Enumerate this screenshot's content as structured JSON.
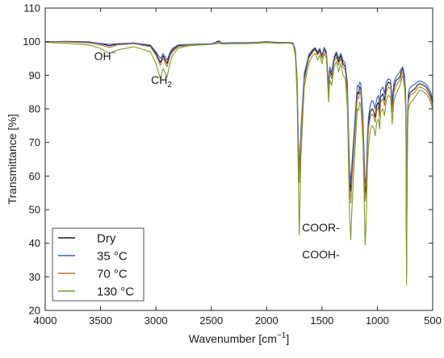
{
  "chart_data": {
    "type": "line",
    "title": "",
    "xlabel": "Wavenumber [cm",
    "xlabel_sup": "−1",
    "xlabel_end": "]",
    "ylabel": "Transmittance [%]",
    "xlim": [
      4000,
      500
    ],
    "x_reversed": true,
    "ylim": [
      20,
      110
    ],
    "x_ticks": [
      4000,
      3500,
      3000,
      2500,
      2000,
      1500,
      1000,
      500
    ],
    "y_ticks": [
      20,
      30,
      40,
      50,
      60,
      70,
      80,
      90,
      100,
      110
    ],
    "grid": false,
    "legend_position": "bottom-left",
    "annotations": [
      {
        "id": "oh",
        "text": "OH",
        "sup": "−",
        "x": 3460,
        "y": 94.5
      },
      {
        "id": "ch2",
        "text": "CH",
        "sub": "2",
        "x": 2950,
        "y": 87.5
      },
      {
        "id": "coor",
        "text": "COOR-",
        "x": 1510,
        "y": 43.5
      },
      {
        "id": "cooh",
        "text": "COOH-",
        "x": 1510,
        "y": 35.5
      }
    ],
    "series": [
      {
        "name": "Dry",
        "color": "#1a1a1a",
        "x": [
          4000,
          3800,
          3600,
          3500,
          3420,
          3350,
          3200,
          3050,
          3000,
          2960,
          2935,
          2900,
          2870,
          2850,
          2800,
          2700,
          2600,
          2500,
          2430,
          2400,
          2300,
          2200,
          2100,
          2000,
          1900,
          1800,
          1760,
          1740,
          1725,
          1715,
          1705,
          1690,
          1660,
          1620,
          1600,
          1580,
          1560,
          1540,
          1520,
          1500,
          1480,
          1460,
          1440,
          1430,
          1412,
          1390,
          1370,
          1350,
          1330,
          1310,
          1290,
          1270,
          1260,
          1250,
          1240,
          1230,
          1210,
          1190,
          1180,
          1170,
          1160,
          1150,
          1140,
          1130,
          1120,
          1110,
          1100,
          1090,
          1080,
          1065,
          1050,
          1035,
          1020,
          1005,
          990,
          980,
          970,
          960,
          950,
          935,
          920,
          900,
          880,
          866,
          850,
          830,
          810,
          795,
          785,
          770,
          755,
          745,
          740,
          736,
          732,
          726,
          720,
          710,
          700,
          680,
          660,
          640,
          620,
          600,
          580,
          560,
          540,
          520,
          500
        ],
        "y": [
          100.0,
          100.1,
          99.9,
          99.4,
          98.8,
          99.3,
          99.6,
          98.8,
          96.5,
          93.8,
          95.8,
          93.5,
          96.5,
          97.5,
          98.8,
          99.1,
          99.2,
          99.3,
          100.2,
          99.5,
          99.6,
          99.6,
          99.7,
          100.0,
          99.7,
          99.8,
          99.5,
          97.0,
          88.0,
          70.0,
          60.5,
          72.5,
          89.5,
          95.5,
          96.5,
          97.5,
          97.9,
          96.5,
          97.5,
          95.5,
          98.0,
          96.5,
          85.5,
          91.5,
          90.0,
          95.0,
          96.5,
          94.0,
          96.0,
          93.5,
          92.5,
          85.5,
          70.0,
          59.0,
          55.5,
          61.5,
          70.5,
          81.0,
          85.0,
          84.5,
          86.5,
          86.0,
          81.5,
          76.0,
          64.5,
          55.0,
          57.5,
          70.0,
          75.5,
          79.0,
          80.0,
          79.5,
          77.5,
          81.0,
          82.0,
          79.0,
          83.5,
          84.0,
          84.5,
          82.5,
          86.5,
          88.0,
          87.5,
          80.5,
          86.5,
          88.5,
          89.0,
          89.5,
          91.0,
          92.0,
          89.0,
          84.0,
          72.0,
          31.5,
          60.0,
          78.0,
          83.0,
          84.5,
          85.0,
          85.5,
          86.0,
          87.0,
          87.5,
          87.3,
          87.0,
          86.5,
          85.5,
          84.0,
          82.0
        ]
      },
      {
        "name": "35 °C",
        "color": "#3b5bbf",
        "x": [
          4000,
          3800,
          3600,
          3500,
          3420,
          3350,
          3200,
          3050,
          3000,
          2960,
          2935,
          2900,
          2870,
          2850,
          2800,
          2700,
          2600,
          2500,
          2430,
          2400,
          2300,
          2200,
          2100,
          2000,
          1900,
          1800,
          1760,
          1740,
          1725,
          1715,
          1705,
          1690,
          1660,
          1620,
          1600,
          1580,
          1560,
          1540,
          1520,
          1500,
          1480,
          1460,
          1440,
          1430,
          1412,
          1390,
          1370,
          1350,
          1330,
          1310,
          1290,
          1270,
          1260,
          1250,
          1240,
          1230,
          1210,
          1190,
          1180,
          1170,
          1160,
          1150,
          1140,
          1130,
          1120,
          1110,
          1100,
          1090,
          1080,
          1065,
          1050,
          1035,
          1020,
          1005,
          990,
          980,
          970,
          960,
          950,
          935,
          920,
          900,
          880,
          866,
          850,
          830,
          810,
          795,
          785,
          770,
          755,
          745,
          740,
          736,
          732,
          726,
          720,
          710,
          700,
          680,
          660,
          640,
          620,
          600,
          580,
          560,
          540,
          520,
          500
        ],
        "y": [
          100.0,
          100.0,
          99.8,
          99.5,
          99.2,
          99.4,
          99.6,
          99.0,
          97.0,
          95.0,
          96.5,
          94.5,
          97.0,
          98.0,
          99.0,
          99.2,
          99.3,
          99.4,
          100.0,
          99.6,
          99.7,
          99.7,
          99.8,
          100.0,
          99.8,
          99.8,
          99.6,
          97.5,
          89.0,
          72.0,
          62.0,
          74.0,
          90.5,
          96.0,
          97.0,
          97.8,
          98.2,
          97.0,
          98.0,
          96.0,
          98.3,
          97.0,
          87.0,
          92.5,
          91.0,
          95.5,
          97.0,
          95.0,
          96.5,
          94.5,
          93.5,
          87.5,
          73.0,
          62.0,
          58.0,
          63.5,
          73.0,
          83.0,
          87.0,
          86.5,
          88.0,
          87.5,
          83.0,
          78.0,
          67.0,
          57.5,
          60.0,
          72.0,
          77.5,
          81.0,
          82.5,
          82.0,
          80.0,
          83.0,
          84.0,
          81.0,
          85.5,
          86.0,
          86.5,
          84.5,
          88.0,
          89.0,
          88.5,
          82.5,
          88.0,
          89.5,
          90.5,
          91.0,
          92.0,
          92.5,
          90.0,
          85.5,
          74.0,
          33.0,
          62.0,
          79.5,
          84.5,
          86.0,
          86.5,
          87.0,
          87.3,
          88.0,
          88.3,
          88.1,
          87.8,
          87.3,
          86.5,
          85.0,
          83.0
        ]
      },
      {
        "name": "70 °C",
        "color": "#b5733a",
        "x": [
          4000,
          3800,
          3600,
          3500,
          3420,
          3350,
          3200,
          3050,
          3000,
          2960,
          2935,
          2900,
          2870,
          2850,
          2800,
          2700,
          2600,
          2500,
          2430,
          2400,
          2300,
          2200,
          2100,
          2000,
          1900,
          1800,
          1760,
          1740,
          1725,
          1715,
          1705,
          1690,
          1660,
          1620,
          1600,
          1580,
          1560,
          1540,
          1520,
          1500,
          1480,
          1460,
          1440,
          1430,
          1412,
          1390,
          1370,
          1350,
          1330,
          1310,
          1290,
          1270,
          1260,
          1250,
          1240,
          1230,
          1210,
          1190,
          1180,
          1170,
          1160,
          1150,
          1140,
          1130,
          1120,
          1110,
          1100,
          1090,
          1080,
          1065,
          1050,
          1035,
          1020,
          1005,
          990,
          980,
          970,
          960,
          950,
          935,
          920,
          900,
          880,
          866,
          850,
          830,
          810,
          795,
          785,
          770,
          755,
          745,
          740,
          736,
          732,
          726,
          720,
          710,
          700,
          680,
          660,
          640,
          620,
          600,
          580,
          560,
          540,
          520,
          500
        ],
        "y": [
          100.0,
          99.9,
          99.6,
          99.0,
          98.3,
          99.0,
          99.4,
          98.5,
          96.0,
          93.0,
          95.0,
          92.5,
          96.0,
          97.0,
          98.5,
          99.0,
          99.1,
          99.2,
          99.9,
          99.4,
          99.5,
          99.5,
          99.6,
          99.9,
          99.6,
          99.7,
          99.4,
          96.5,
          87.0,
          68.0,
          58.0,
          71.0,
          88.5,
          95.0,
          96.0,
          97.0,
          97.5,
          96.0,
          97.0,
          95.0,
          97.5,
          96.0,
          84.5,
          90.5,
          89.0,
          94.0,
          95.5,
          93.0,
          95.0,
          92.5,
          91.5,
          84.0,
          68.0,
          56.5,
          52.0,
          58.5,
          69.0,
          79.5,
          83.5,
          83.0,
          85.0,
          84.5,
          80.0,
          74.5,
          63.0,
          52.5,
          55.5,
          68.5,
          74.0,
          77.5,
          78.5,
          78.0,
          76.0,
          79.5,
          80.5,
          77.5,
          82.0,
          82.5,
          83.0,
          81.0,
          85.0,
          86.5,
          86.0,
          79.0,
          85.0,
          87.0,
          88.0,
          88.5,
          90.0,
          91.0,
          88.0,
          82.5,
          70.0,
          30.5,
          58.0,
          76.5,
          82.0,
          83.5,
          84.0,
          84.5,
          85.0,
          86.0,
          86.5,
          86.3,
          86.0,
          85.5,
          84.5,
          83.0,
          81.0
        ]
      },
      {
        "name": "130 °C",
        "color": "#7a9a2c",
        "x": [
          4000,
          3800,
          3600,
          3500,
          3420,
          3350,
          3200,
          3050,
          3000,
          2960,
          2935,
          2900,
          2870,
          2850,
          2800,
          2700,
          2600,
          2500,
          2430,
          2400,
          2300,
          2200,
          2100,
          2000,
          1900,
          1800,
          1760,
          1740,
          1725,
          1715,
          1705,
          1690,
          1660,
          1620,
          1600,
          1580,
          1560,
          1540,
          1520,
          1500,
          1480,
          1460,
          1440,
          1430,
          1412,
          1390,
          1370,
          1350,
          1330,
          1310,
          1290,
          1270,
          1260,
          1250,
          1240,
          1230,
          1210,
          1190,
          1180,
          1170,
          1160,
          1150,
          1140,
          1130,
          1120,
          1110,
          1100,
          1090,
          1080,
          1065,
          1050,
          1035,
          1020,
          1005,
          990,
          980,
          970,
          960,
          950,
          935,
          920,
          900,
          880,
          866,
          850,
          830,
          810,
          795,
          785,
          770,
          755,
          745,
          740,
          736,
          732,
          726,
          720,
          710,
          700,
          680,
          660,
          640,
          620,
          600,
          580,
          560,
          540,
          520,
          500
        ],
        "y": [
          99.8,
          99.5,
          99.0,
          98.0,
          96.5,
          97.5,
          98.5,
          97.0,
          93.5,
          89.0,
          92.0,
          89.5,
          94.0,
          96.0,
          98.0,
          98.8,
          99.0,
          99.2,
          99.5,
          99.3,
          99.4,
          99.4,
          99.5,
          99.7,
          99.5,
          99.6,
          99.2,
          95.5,
          84.0,
          62.0,
          42.5,
          66.0,
          86.5,
          93.5,
          95.0,
          96.0,
          96.5,
          94.5,
          96.0,
          93.5,
          96.5,
          95.0,
          82.0,
          88.5,
          87.0,
          92.5,
          94.0,
          91.0,
          93.5,
          90.0,
          89.0,
          80.0,
          63.0,
          48.0,
          41.0,
          50.0,
          63.0,
          75.0,
          80.0,
          79.5,
          82.0,
          81.0,
          76.0,
          70.0,
          55.0,
          39.5,
          47.0,
          62.0,
          69.0,
          73.5,
          75.0,
          74.5,
          72.0,
          76.0,
          77.0,
          74.0,
          79.0,
          79.5,
          80.0,
          78.0,
          82.5,
          84.0,
          83.5,
          75.5,
          82.5,
          84.5,
          86.0,
          87.0,
          88.5,
          90.0,
          86.5,
          80.5,
          66.0,
          27.5,
          54.0,
          73.5,
          79.5,
          81.0,
          82.0,
          82.5,
          83.5,
          84.5,
          85.5,
          85.5,
          85.0,
          84.5,
          83.5,
          82.0,
          80.0
        ]
      }
    ]
  }
}
